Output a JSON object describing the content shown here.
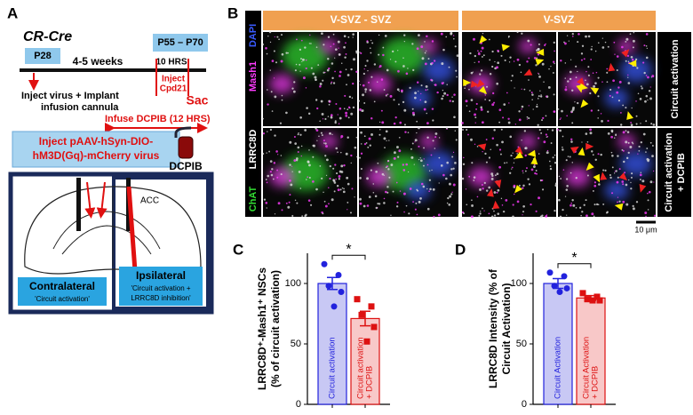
{
  "panel_labels": [
    "A",
    "B",
    "C",
    "D"
  ],
  "panel_a": {
    "strain": "CR-Cre",
    "p28": "P28",
    "duration": "4-5 weeks",
    "p55_p70": "P55 – P70",
    "hrs": "10 HRS",
    "inject_cpd21": [
      "Inject",
      "Cpd21"
    ],
    "sac": "Sac",
    "inject_virus": [
      "Inject virus + Implant",
      "infusion cannula"
    ],
    "infuse": "Infuse DCPIB (12 HRS)",
    "virus": [
      "Inject pAAV-hSyn-DIO-",
      "hM3D(Gq)-mCherry virus"
    ],
    "dcpib": "DCPIB",
    "acc": "ACC",
    "contralateral": "Contralateral",
    "contralateral_note": "'Circuit activation'",
    "ipsilateral": "Ipsilateral",
    "ipsilateral_note": [
      "'Circuit activation +",
      "LRRC8D inhibition'"
    ]
  },
  "panel_b": {
    "headers": [
      "V-SVZ - SVZ",
      "V-SVZ"
    ],
    "channels": [
      {
        "name": "DAPI",
        "color": "#3a5bff"
      },
      {
        "name": "Mash1",
        "color": "#ff3cff"
      },
      {
        "name": "LRRC8D",
        "color": "#ffffff"
      },
      {
        "name": "ChAT",
        "color": "#33dd33"
      }
    ],
    "conditions": [
      [
        "Circuit activation"
      ],
      [
        "Circuit activation",
        "+ DCPIB"
      ]
    ],
    "scale_bar": "10 μm"
  },
  "chart_data": [
    {
      "type": "bar",
      "ylabel": [
        "LRRC8D⁺-Mash1⁺ NSCs",
        "(% of circuit activation)"
      ],
      "categories": [
        [
          "Circuit activation"
        ],
        [
          "Circuit activation",
          "+ DCPIB"
        ]
      ],
      "values": [
        100,
        71
      ],
      "errors": [
        5,
        6
      ],
      "colors": [
        "#2222dd",
        "#dd1111"
      ],
      "fills": [
        "#c8c8f4",
        "#f8c8c8"
      ],
      "points": [
        [
          116,
          107,
          98,
          93,
          81
        ],
        [
          87,
          81,
          74,
          64,
          52
        ]
      ],
      "ylim": [
        0,
        125
      ],
      "yticks": [
        0,
        50,
        100
      ],
      "annotation": "*"
    },
    {
      "type": "bar",
      "ylabel": [
        "LRRC8D Intensity (% of",
        "Circuit Activation)"
      ],
      "categories": [
        [
          "Circuit Activation"
        ],
        [
          "Circuit Activation",
          "+ DCPIB"
        ]
      ],
      "values": [
        100,
        88
      ],
      "errors": [
        4,
        2
      ],
      "colors": [
        "#2222dd",
        "#dd1111"
      ],
      "fills": [
        "#c8c8f4",
        "#f8c8c8"
      ],
      "points": [
        [
          109,
          106,
          98,
          96,
          93
        ],
        [
          92,
          89,
          87,
          86,
          86
        ]
      ],
      "ylim": [
        0,
        125
      ],
      "yticks": [
        0,
        50,
        100
      ],
      "annotation": "*"
    }
  ]
}
